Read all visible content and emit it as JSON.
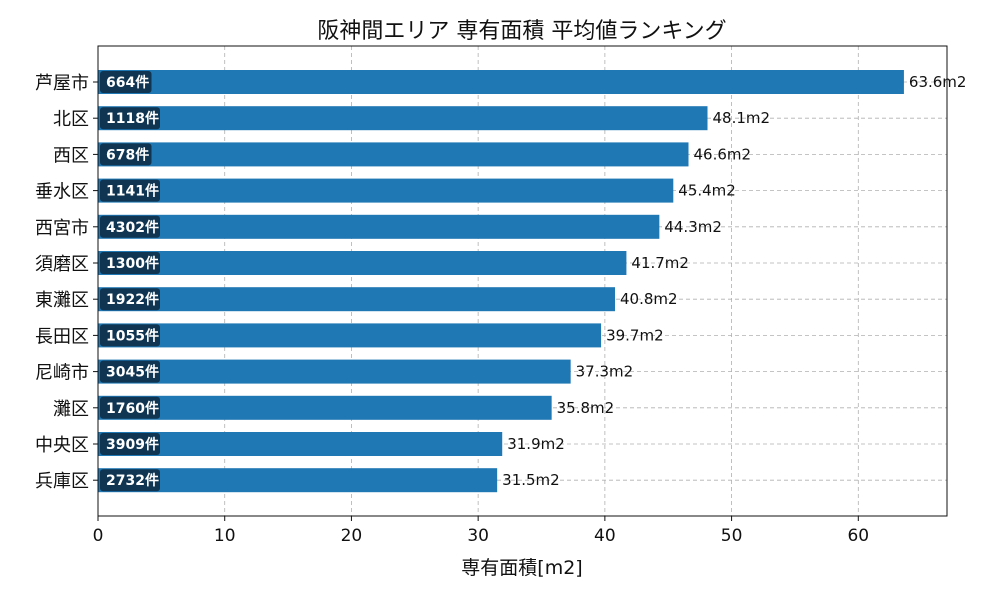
{
  "chart_data": {
    "type": "bar",
    "orientation": "horizontal",
    "title": "阪神間エリア 専有面積 平均値ランキング",
    "xlabel": "専有面積[m2]",
    "ylabel": "",
    "xlim": [
      0,
      67
    ],
    "xticks": [
      0,
      10,
      20,
      30,
      40,
      50,
      60
    ],
    "grid": true,
    "colors": {
      "bar": "#1f77b4",
      "badge": "#0f3552"
    },
    "value_suffix": "m2",
    "count_suffix": "件",
    "categories": [
      "芦屋市",
      "北区",
      "西区",
      "垂水区",
      "西宮市",
      "須磨区",
      "東灘区",
      "長田区",
      "尼崎市",
      "灘区",
      "中央区",
      "兵庫区"
    ],
    "values": [
      63.6,
      48.1,
      46.6,
      45.4,
      44.3,
      41.7,
      40.8,
      39.7,
      37.3,
      35.8,
      31.9,
      31.5
    ],
    "counts": [
      664,
      1118,
      678,
      1141,
      4302,
      1300,
      1922,
      1055,
      3045,
      1760,
      3909,
      2732
    ]
  }
}
